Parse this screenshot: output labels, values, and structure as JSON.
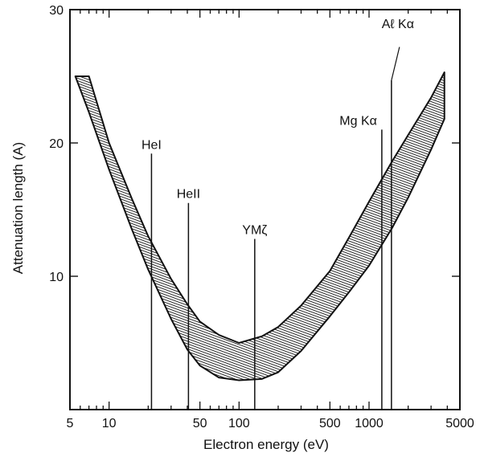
{
  "chart_data": {
    "type": "area",
    "title": "",
    "xlabel": "Electron energy (eV)",
    "ylabel": "Attenuation length (A)",
    "x_scale": "log",
    "xlim": [
      5,
      5000
    ],
    "ylim": [
      0,
      30
    ],
    "grid": false,
    "x_ticks": [
      5,
      10,
      50,
      100,
      500,
      1000,
      5000
    ],
    "x_tick_labels": [
      "5",
      "10",
      "50",
      "100",
      "500",
      "1000",
      "5000"
    ],
    "y_ticks": [
      10,
      20,
      30
    ],
    "y_tick_labels": [
      "10",
      "20",
      "30"
    ],
    "band": {
      "upper": {
        "x": [
          7,
          10,
          15,
          20,
          30,
          40,
          50,
          70,
          100,
          150,
          200,
          300,
          500,
          700,
          1000,
          1500,
          2000,
          3000,
          3800
        ],
        "y": [
          25,
          20,
          15.8,
          13,
          9.8,
          7.9,
          6.6,
          5.6,
          5,
          5.5,
          6.2,
          7.8,
          10.4,
          12.9,
          15.6,
          18.6,
          20.6,
          23.4,
          25.3
        ]
      },
      "lower": {
        "x": [
          5.5,
          7,
          10,
          15,
          20,
          30,
          40,
          50,
          70,
          100,
          150,
          200,
          300,
          500,
          700,
          1000,
          1500,
          2000,
          3000,
          3800
        ],
        "y": [
          25,
          22.3,
          18,
          13.5,
          10.5,
          6.8,
          4.5,
          3.3,
          2.4,
          2.2,
          2.3,
          2.8,
          4.4,
          7,
          8.8,
          10.8,
          13.6,
          15.9,
          19.5,
          21.8
        ]
      }
    },
    "annotations": [
      {
        "label": "HeI",
        "x": 21.2,
        "y_top": 19.2
      },
      {
        "label": "HeII",
        "x": 40.8,
        "y_top": 15.5
      },
      {
        "label": "YMζ",
        "x": 132,
        "y_top": 12.8
      },
      {
        "label": "Mg Kα",
        "x": 1254,
        "y_top": 21
      },
      {
        "label": "Aℓ Kα",
        "x": 1487,
        "y_top": 24.7
      }
    ]
  }
}
